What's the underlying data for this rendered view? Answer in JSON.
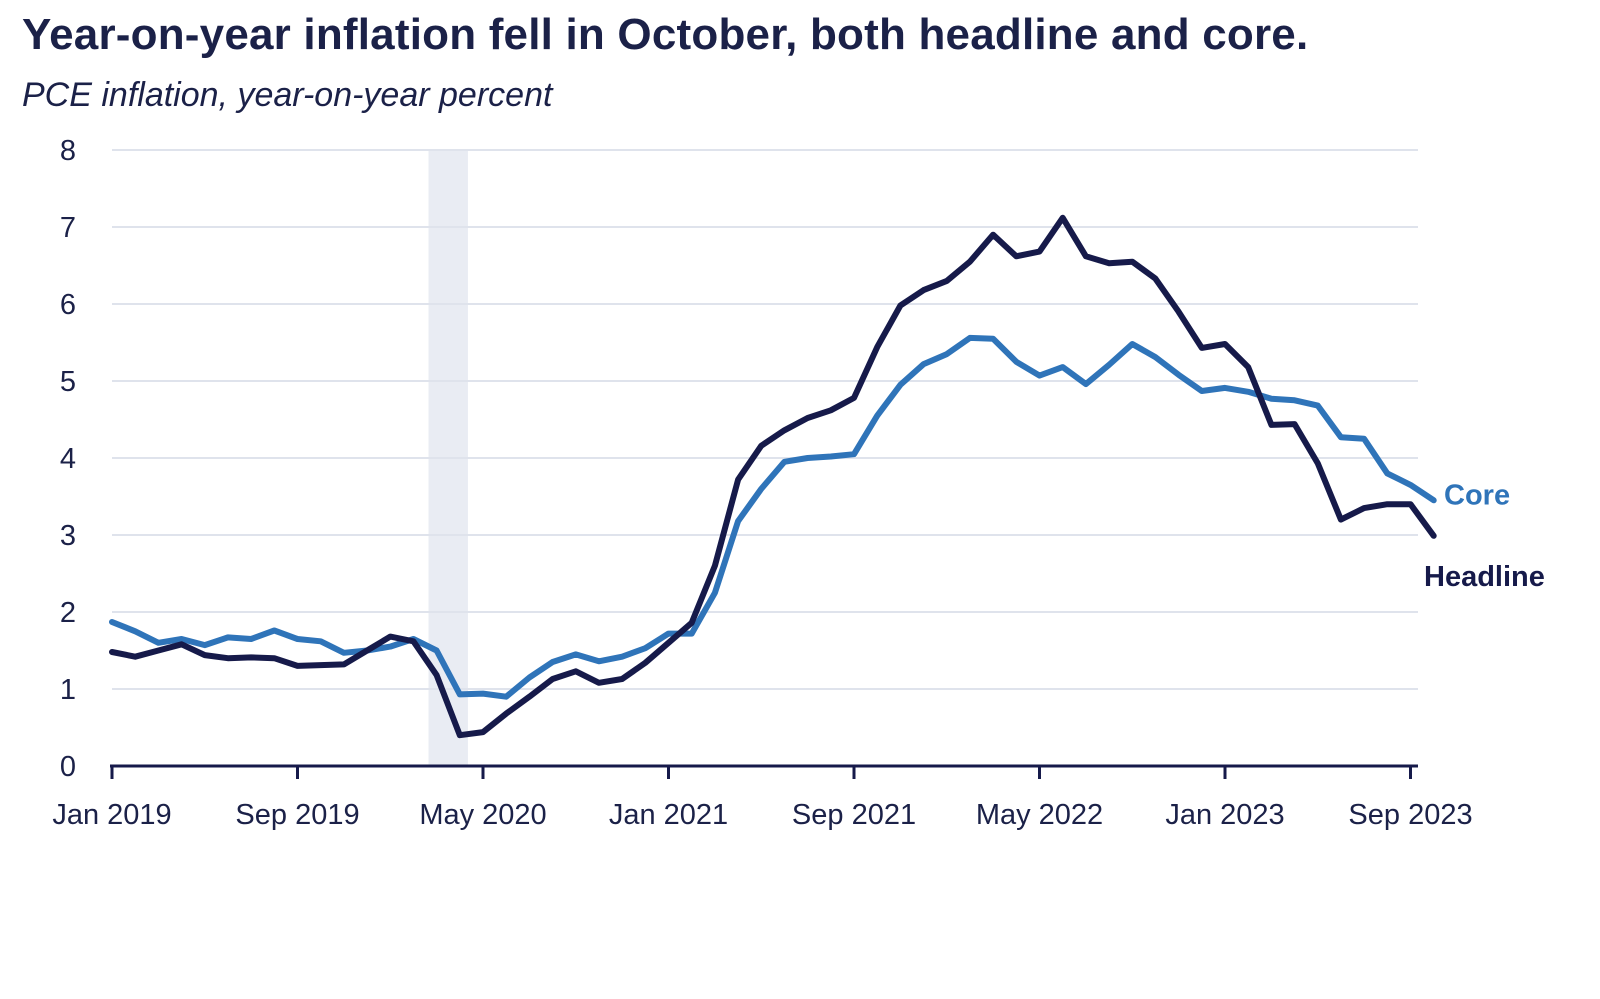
{
  "chart_data": {
    "type": "line",
    "title": "Year-on-year inflation fell in October, both headline and core.",
    "subtitle": "PCE inflation, year-on-year percent",
    "ylim": [
      0,
      8
    ],
    "y_ticks": [
      "0",
      "1",
      "2",
      "3",
      "4",
      "5",
      "6",
      "7",
      "8"
    ],
    "x_tick_labels": [
      {
        "label": "Jan 2019",
        "date": "2019-01"
      },
      {
        "label": "Sep 2019",
        "date": "2019-09"
      },
      {
        "label": "May 2020",
        "date": "2020-05"
      },
      {
        "label": "Jan 2021",
        "date": "2021-01"
      },
      {
        "label": "Sep 2021",
        "date": "2021-09"
      },
      {
        "label": "May 2022",
        "date": "2022-05"
      },
      {
        "label": "Jan 2023",
        "date": "2023-01"
      },
      {
        "label": "Sep 2023",
        "date": "2023-09"
      }
    ],
    "grid": "horizontal",
    "recession_shading": {
      "start": "2020-03",
      "end": "2020-04",
      "color": "#e9ecf3"
    },
    "x": [
      "2019-01",
      "2019-02",
      "2019-03",
      "2019-04",
      "2019-05",
      "2019-06",
      "2019-07",
      "2019-08",
      "2019-09",
      "2019-10",
      "2019-11",
      "2019-12",
      "2020-01",
      "2020-02",
      "2020-03",
      "2020-04",
      "2020-05",
      "2020-06",
      "2020-07",
      "2020-08",
      "2020-09",
      "2020-10",
      "2020-11",
      "2020-12",
      "2021-01",
      "2021-02",
      "2021-03",
      "2021-04",
      "2021-05",
      "2021-06",
      "2021-07",
      "2021-08",
      "2021-09",
      "2021-10",
      "2021-11",
      "2021-12",
      "2022-01",
      "2022-02",
      "2022-03",
      "2022-04",
      "2022-05",
      "2022-06",
      "2022-07",
      "2022-08",
      "2022-09",
      "2022-10",
      "2022-11",
      "2022-12",
      "2023-01",
      "2023-02",
      "2023-03",
      "2023-04",
      "2023-05",
      "2023-06",
      "2023-07",
      "2023-08",
      "2023-09",
      "2023-10"
    ],
    "series": [
      {
        "name": "Core",
        "color": "#2f74b9",
        "values": [
          1.87,
          1.75,
          1.6,
          1.65,
          1.57,
          1.67,
          1.65,
          1.76,
          1.65,
          1.62,
          1.47,
          1.5,
          1.55,
          1.65,
          1.5,
          0.93,
          0.94,
          0.9,
          1.15,
          1.35,
          1.45,
          1.36,
          1.42,
          1.53,
          1.72,
          1.72,
          2.25,
          3.18,
          3.6,
          3.95,
          4.0,
          4.02,
          4.05,
          4.55,
          4.95,
          5.22,
          5.35,
          5.56,
          5.55,
          5.25,
          5.07,
          5.18,
          4.96,
          5.21,
          5.48,
          5.31,
          5.08,
          4.87,
          4.91,
          4.86,
          4.77,
          4.75,
          4.68,
          4.27,
          4.25,
          3.8,
          3.65,
          3.45
        ]
      },
      {
        "name": "Headline",
        "color": "#161a4a",
        "values": [
          1.48,
          1.42,
          1.5,
          1.58,
          1.44,
          1.4,
          1.41,
          1.4,
          1.3,
          1.31,
          1.32,
          1.5,
          1.68,
          1.62,
          1.18,
          0.4,
          0.44,
          0.68,
          0.9,
          1.13,
          1.23,
          1.08,
          1.13,
          1.34,
          1.6,
          1.86,
          2.6,
          3.72,
          4.16,
          4.36,
          4.52,
          4.62,
          4.78,
          5.44,
          5.98,
          6.18,
          6.3,
          6.55,
          6.9,
          6.62,
          6.68,
          7.12,
          6.62,
          6.53,
          6.55,
          6.33,
          5.9,
          5.43,
          5.48,
          5.18,
          4.43,
          4.44,
          3.93,
          3.2,
          3.35,
          3.4,
          3.4,
          2.99
        ]
      }
    ]
  }
}
